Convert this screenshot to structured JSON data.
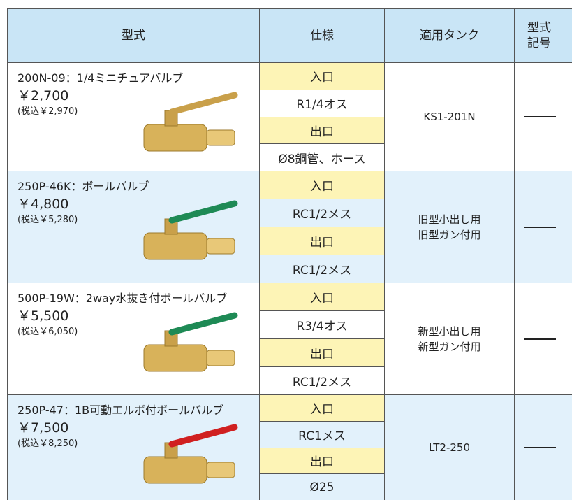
{
  "header": {
    "model": "型式",
    "spec": "仕様",
    "tank": "適用タンク",
    "code": [
      "型式",
      "記号"
    ]
  },
  "rows": [
    {
      "title": "200N-09：1/4ミニチュアバルブ",
      "price": "￥2,700",
      "tax": "(税込￥2,970)",
      "inlet_label": "入口",
      "inlet": "R1/4オス",
      "outlet_label": "出口",
      "outlet": "Ø8銅管、ホース",
      "tank": [
        "KS1-201N"
      ]
    },
    {
      "title": "250P-46K：ボールバルブ",
      "price": "￥4,800",
      "tax": "(税込￥5,280)",
      "inlet_label": "入口",
      "inlet": "RC1/2メス",
      "outlet_label": "出口",
      "outlet": "RC1/2メス",
      "tank": [
        "旧型小出し用",
        "旧型ガン付用"
      ]
    },
    {
      "title": "500P-19W：2way水抜き付ボールバルブ",
      "price": "￥5,500",
      "tax": "(税込￥6,050)",
      "inlet_label": "入口",
      "inlet": "R3/4オス",
      "outlet_label": "出口",
      "outlet": "RC1/2メス",
      "tank": [
        "新型小出し用",
        "新型ガン付用"
      ]
    },
    {
      "title": "250P-47：1B可動エルボ付ボールバルブ",
      "price": "￥7,500",
      "tax": "(税込￥8,250)",
      "inlet_label": "入口",
      "inlet": "RC1メス",
      "outlet_label": "出口",
      "outlet": "Ø25",
      "tank": [
        "LT2-250"
      ]
    }
  ]
}
